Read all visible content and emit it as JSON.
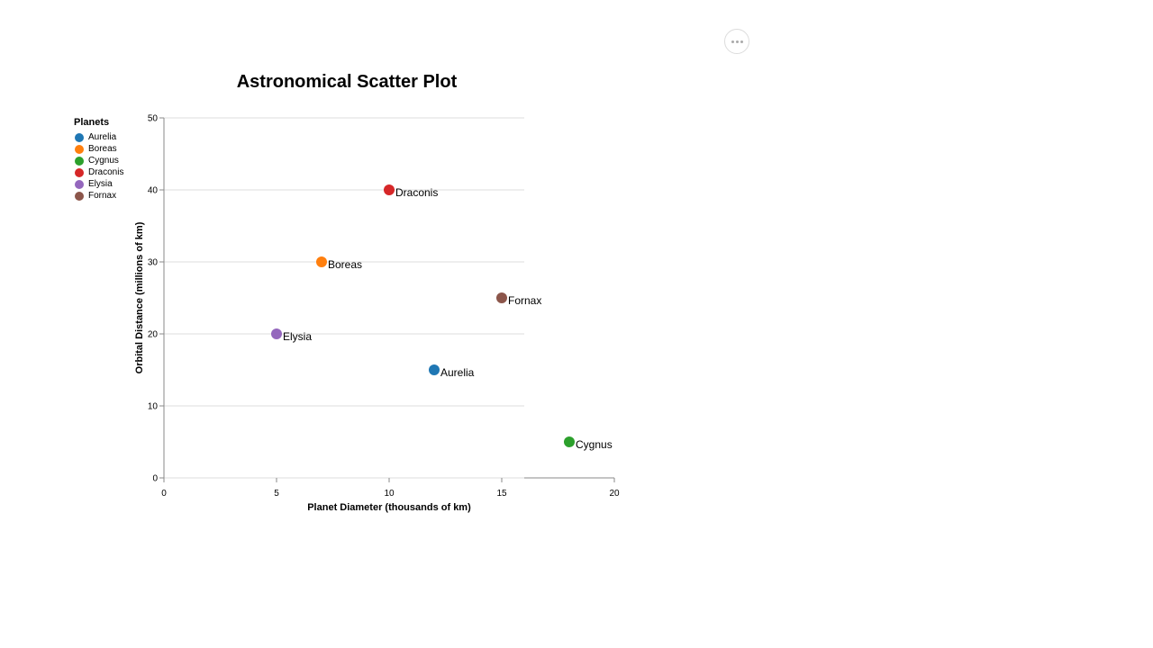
{
  "toolbar": {
    "more_icon": "more-horizontal-icon"
  },
  "chart_data": {
    "type": "scatter",
    "title": "Astronomical Scatter Plot",
    "xlabel": "Planet Diameter (thousands of km)",
    "ylabel": "Orbital Distance (millions of km)",
    "xlim": [
      0,
      20
    ],
    "ylim": [
      0,
      50
    ],
    "xticks": [
      0,
      5,
      10,
      15,
      20
    ],
    "yticks": [
      0,
      10,
      20,
      30,
      40,
      50
    ],
    "grid": "horizontal",
    "legend": {
      "title": "Planets",
      "placement": "left"
    },
    "series": [
      {
        "name": "Aurelia",
        "color": "#1f77b4",
        "x": 12,
        "y": 15
      },
      {
        "name": "Boreas",
        "color": "#ff7f0e",
        "x": 7,
        "y": 30
      },
      {
        "name": "Cygnus",
        "color": "#2ca02c",
        "x": 18,
        "y": 5
      },
      {
        "name": "Draconis",
        "color": "#d62728",
        "x": 10,
        "y": 40
      },
      {
        "name": "Elysia",
        "color": "#9467bd",
        "x": 5,
        "y": 20
      },
      {
        "name": "Fornax",
        "color": "#8c564b",
        "x": 15,
        "y": 25
      }
    ]
  }
}
